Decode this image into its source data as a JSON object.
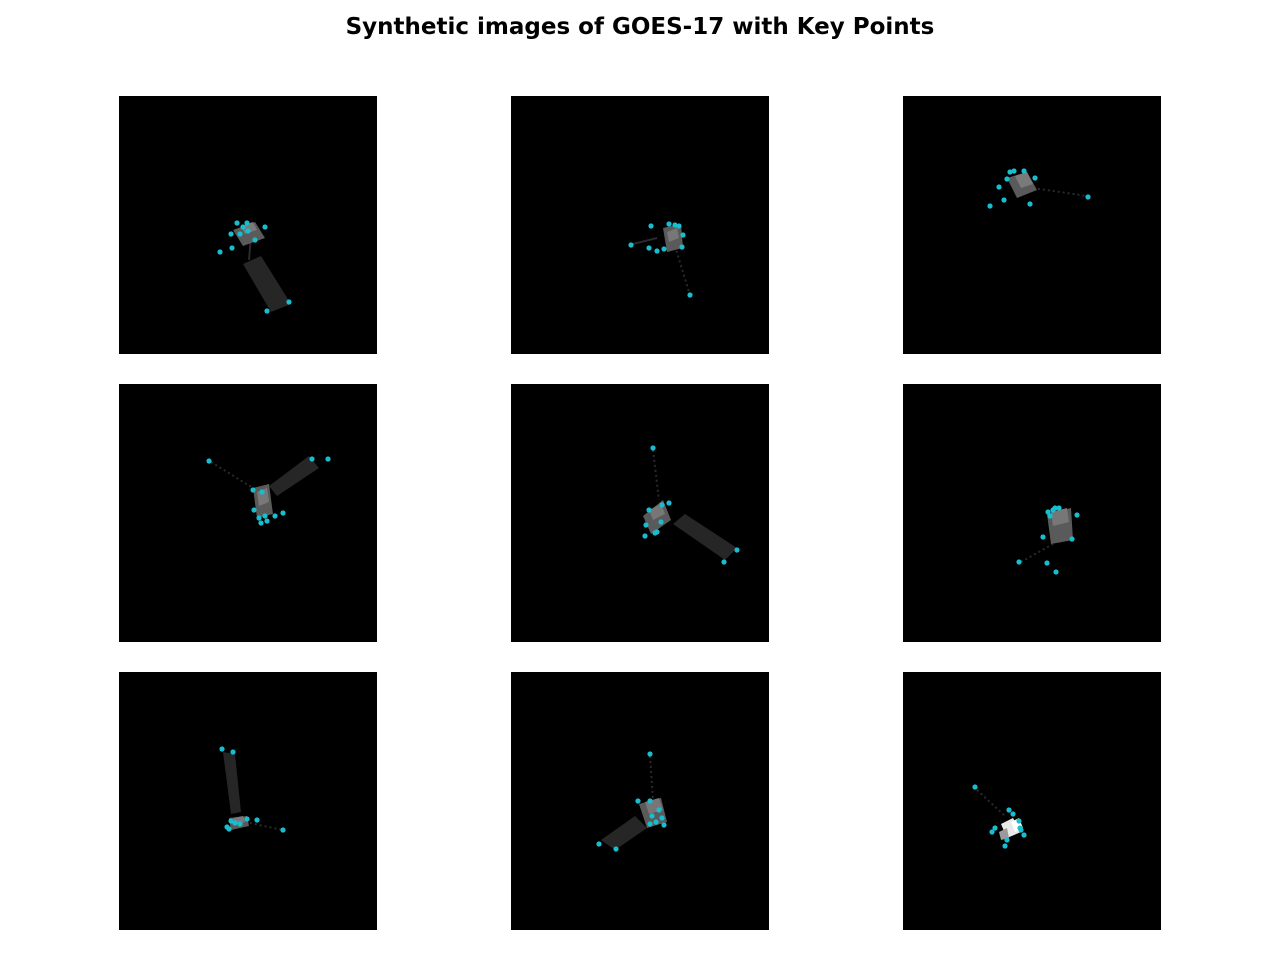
{
  "figure": {
    "title": "Synthetic images of GOES-17 with Key Points",
    "background": "#ffffff",
    "panel_background": "#000000",
    "keypoint_color": "#17becf",
    "body_color": "#5a5a5a",
    "panel_color": "#262626"
  },
  "panels": [
    {
      "keypoints": [
        [
          118,
          127
        ],
        [
          124,
          131
        ],
        [
          128,
          127
        ],
        [
          112,
          138
        ],
        [
          121,
          138
        ],
        [
          129,
          135
        ],
        [
          136,
          144
        ],
        [
          146,
          131
        ],
        [
          101,
          156
        ],
        [
          113,
          152
        ],
        [
          148,
          215
        ],
        [
          170,
          206
        ]
      ]
    },
    {
      "keypoints": [
        [
          140,
          130
        ],
        [
          158,
          128
        ],
        [
          164,
          129
        ],
        [
          168,
          130
        ],
        [
          172,
          139
        ],
        [
          138,
          152
        ],
        [
          146,
          155
        ],
        [
          153,
          153
        ],
        [
          171,
          151
        ],
        [
          120,
          149
        ],
        [
          179,
          199
        ]
      ]
    },
    {
      "keypoints": [
        [
          107,
          76
        ],
        [
          111,
          75
        ],
        [
          121,
          75
        ],
        [
          132,
          82
        ],
        [
          104,
          83
        ],
        [
          96,
          91
        ],
        [
          101,
          104
        ],
        [
          87,
          110
        ],
        [
          127,
          108
        ],
        [
          185,
          101
        ]
      ]
    },
    {
      "keypoints": [
        [
          90,
          77
        ],
        [
          193,
          75
        ],
        [
          209,
          75
        ],
        [
          134,
          106
        ],
        [
          143,
          108
        ],
        [
          135,
          126
        ],
        [
          140,
          134
        ],
        [
          146,
          132
        ],
        [
          156,
          132
        ],
        [
          164,
          129
        ],
        [
          148,
          137
        ],
        [
          142,
          139
        ]
      ]
    },
    {
      "keypoints": [
        [
          142,
          64
        ],
        [
          158,
          119
        ],
        [
          151,
          121
        ],
        [
          138,
          126
        ],
        [
          150,
          138
        ],
        [
          135,
          141
        ],
        [
          146,
          148
        ],
        [
          134,
          152
        ],
        [
          144,
          149
        ],
        [
          226,
          166
        ],
        [
          213,
          178
        ]
      ]
    },
    {
      "keypoints": [
        [
          145,
          128
        ],
        [
          150,
          126
        ],
        [
          152,
          124
        ],
        [
          156,
          124
        ],
        [
          174,
          131
        ],
        [
          147,
          132
        ],
        [
          140,
          153
        ],
        [
          169,
          155
        ],
        [
          116,
          178
        ],
        [
          144,
          179
        ],
        [
          153,
          188
        ]
      ]
    },
    {
      "keypoints": [
        [
          103,
          77
        ],
        [
          114,
          80
        ],
        [
          112,
          149
        ],
        [
          116,
          151
        ],
        [
          121,
          152
        ],
        [
          128,
          147
        ],
        [
          138,
          148
        ],
        [
          164,
          158
        ],
        [
          108,
          155
        ],
        [
          110,
          157
        ]
      ]
    },
    {
      "keypoints": [
        [
          139,
          82
        ],
        [
          127,
          129
        ],
        [
          139,
          129
        ],
        [
          148,
          138
        ],
        [
          141,
          144
        ],
        [
          145,
          150
        ],
        [
          139,
          152
        ],
        [
          153,
          153
        ],
        [
          151,
          146
        ],
        [
          88,
          172
        ],
        [
          105,
          177
        ]
      ]
    },
    {
      "keypoints": [
        [
          72,
          115
        ],
        [
          106,
          138
        ],
        [
          110,
          142
        ],
        [
          116,
          149
        ],
        [
          92,
          156
        ],
        [
          89,
          160
        ],
        [
          118,
          158
        ],
        [
          121,
          163
        ],
        [
          117,
          156
        ],
        [
          104,
          168
        ],
        [
          102,
          174
        ]
      ]
    }
  ]
}
